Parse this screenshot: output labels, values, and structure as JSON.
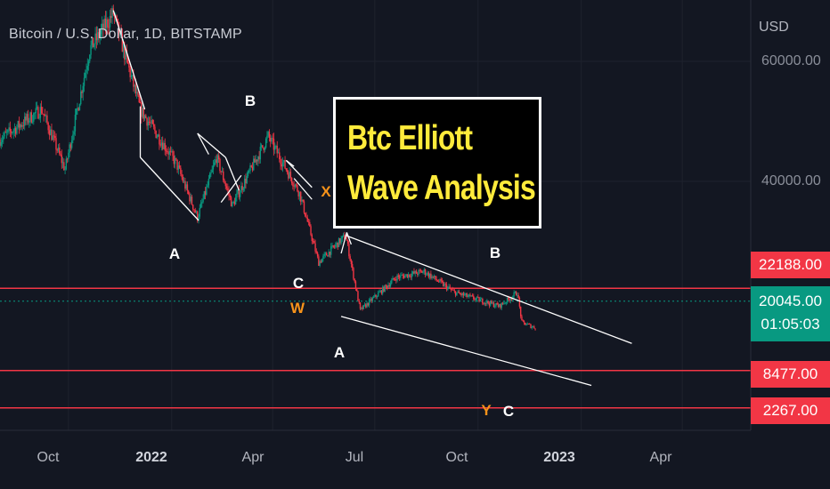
{
  "header": {
    "symbol": "Bitcoin / U.S. Dollar, 1D, BITSTAMP"
  },
  "price_axis": {
    "currency": "USD",
    "ticks": [
      "60000.00",
      "40000.00"
    ],
    "labels": [
      {
        "value": "22188.00",
        "color": "#f23645"
      },
      {
        "value": "20045.00",
        "timer": "01:05:03",
        "color": "#089981"
      },
      {
        "value": "8477.00",
        "color": "#f23645"
      },
      {
        "value": "2267.00",
        "color": "#f23645"
      }
    ]
  },
  "time_axis": {
    "ticks": [
      {
        "label": "Oct",
        "year": false
      },
      {
        "label": "2022",
        "year": true
      },
      {
        "label": "Apr",
        "year": false
      },
      {
        "label": "Jul",
        "year": false
      },
      {
        "label": "Oct",
        "year": false
      },
      {
        "label": "2023",
        "year": true
      },
      {
        "label": "Apr",
        "year": false
      }
    ]
  },
  "title_box": {
    "line1": "Btc Elliott",
    "line2": "Wave Analysis"
  },
  "wave_labels": [
    {
      "text": "A",
      "color": "white"
    },
    {
      "text": "B",
      "color": "white"
    },
    {
      "text": "X",
      "color": "orange"
    },
    {
      "text": "C",
      "color": "white"
    },
    {
      "text": "W",
      "color": "orange"
    },
    {
      "text": "A",
      "color": "white"
    },
    {
      "text": "B",
      "color": "white"
    },
    {
      "text": "Y",
      "color": "orange"
    },
    {
      "text": "C",
      "color": "white"
    }
  ],
  "chart_data": {
    "type": "candlestick",
    "title": "Bitcoin / U.S. Dollar, 1D, BITSTAMP",
    "x_range": [
      "2021-08-01",
      "2023-06-01"
    ],
    "ylim": [
      0,
      70000
    ],
    "y_tick_labels": [
      "60000.00",
      "40000.00"
    ],
    "x_tick_labels": [
      "Oct",
      "2022",
      "Apr",
      "Jul",
      "Oct",
      "2023",
      "Apr"
    ],
    "colors": {
      "up": "#089981",
      "down": "#f23645",
      "background": "#131722"
    },
    "price_path": [
      {
        "date": "2021-08-01",
        "price": 47000
      },
      {
        "date": "2021-09-07",
        "price": 52000
      },
      {
        "date": "2021-09-28",
        "price": 42000
      },
      {
        "date": "2021-10-20",
        "price": 62000
      },
      {
        "date": "2021-11-10",
        "price": 68000
      },
      {
        "date": "2021-12-04",
        "price": 52000
      },
      {
        "date": "2022-01-05",
        "price": 43000
      },
      {
        "date": "2022-01-24",
        "price": 34000
      },
      {
        "date": "2022-02-10",
        "price": 44000
      },
      {
        "date": "2022-02-24",
        "price": 36000
      },
      {
        "date": "2022-03-28",
        "price": 47500
      },
      {
        "date": "2022-04-25",
        "price": 38000
      },
      {
        "date": "2022-05-12",
        "price": 26500
      },
      {
        "date": "2022-06-05",
        "price": 31000
      },
      {
        "date": "2022-06-18",
        "price": 18500
      },
      {
        "date": "2022-07-20",
        "price": 24000
      },
      {
        "date": "2022-08-14",
        "price": 25000
      },
      {
        "date": "2022-09-10",
        "price": 21500
      },
      {
        "date": "2022-10-20",
        "price": 19200
      },
      {
        "date": "2022-11-05",
        "price": 21500
      },
      {
        "date": "2022-11-09",
        "price": 16500
      },
      {
        "date": "2022-11-21",
        "price": 15600
      }
    ],
    "horizontal_lines": [
      22188,
      20045,
      8477,
      2267
    ],
    "trend_lines": [
      {
        "from": {
          "date": "2022-06-05",
          "price": 31000
        },
        "to": {
          "date": "2023-02-15",
          "price": 13000
        }
      },
      {
        "from": {
          "date": "2022-06-01",
          "price": 17500
        },
        "to": {
          "date": "2023-01-10",
          "price": 6000
        }
      }
    ]
  }
}
